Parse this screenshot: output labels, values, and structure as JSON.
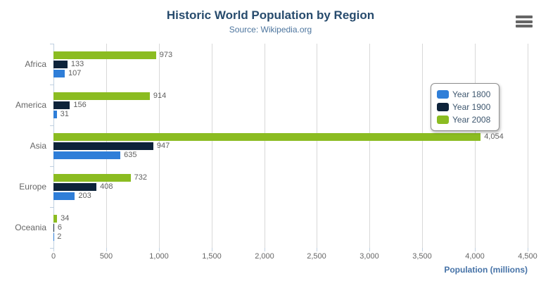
{
  "header": {
    "title": "Historic World Population by Region",
    "subtitle": "Source: Wikipedia.org"
  },
  "axis": {
    "title": "Population (millions)"
  },
  "chart_data": {
    "type": "bar",
    "orientation": "horizontal",
    "title": "Historic World Population by Region",
    "subtitle": "Source: Wikipedia.org",
    "categories": [
      "Africa",
      "America",
      "Asia",
      "Europe",
      "Oceania"
    ],
    "series": [
      {
        "name": "Year 1800",
        "color": "#2f7ed8",
        "values": [
          107,
          31,
          635,
          203,
          2
        ]
      },
      {
        "name": "Year 1900",
        "color": "#0d233a",
        "values": [
          133,
          156,
          947,
          408,
          6
        ]
      },
      {
        "name": "Year 2008",
        "color": "#8bbc21",
        "values": [
          973,
          914,
          4054,
          732,
          34
        ]
      }
    ],
    "bar_order_top_to_bottom": [
      "Year 2008",
      "Year 1900",
      "Year 1800"
    ],
    "xlabel": "Population (millions)",
    "ylabel": "",
    "xlim": [
      0,
      4500
    ],
    "x_tick_step": 500,
    "x_ticks": [
      "0",
      "500",
      "1,000",
      "1,500",
      "2,000",
      "2,500",
      "3,000",
      "3,500",
      "4,000",
      "4,500"
    ],
    "grid": true,
    "legend_position": "middle-right"
  },
  "colors": {
    "title": "#274b6d",
    "subtitle": "#4d759e",
    "axis_title": "#4572a7",
    "axis_labels": "#666666",
    "data_labels": "#606060",
    "gridline": "#d8d8d8",
    "axis_line": "#c0d0e0",
    "legend_border": "#909090",
    "legend_text": "#3e576f"
  },
  "export_menu": {
    "icon": "hamburger-icon"
  }
}
